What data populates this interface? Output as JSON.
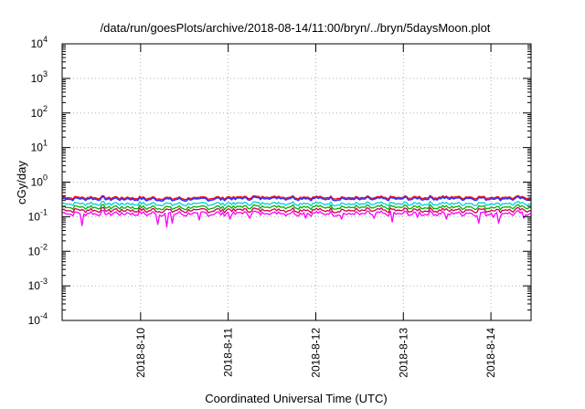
{
  "chart_data": {
    "type": "line",
    "title": "/data/run/goesPlots/archive/2018-08-14/11:00/bryn/../bryn/5daysMoon.plot",
    "xlabel": "Coordinated Universal Time (UTC)",
    "ylabel": "cGy/day",
    "yscale": "log",
    "ylim": [
      0.0001,
      10000
    ],
    "xlim": [
      "2018-08-09 02:30",
      "2018-08-14 11:00"
    ],
    "x_ticks": [
      "2018-8-10",
      "2018-8-11",
      "2018-8-12",
      "2018-8-13",
      "2018-8-14"
    ],
    "y_ticks": [
      {
        "base": "10",
        "exp": "4"
      },
      {
        "base": "10",
        "exp": "3"
      },
      {
        "base": "10",
        "exp": "2"
      },
      {
        "base": "10",
        "exp": "1"
      },
      {
        "base": "10",
        "exp": "0"
      },
      {
        "base": "10",
        "exp": "-1"
      },
      {
        "base": "10",
        "exp": "-2"
      },
      {
        "base": "10",
        "exp": "-3"
      },
      {
        "base": "10",
        "exp": "-4"
      }
    ],
    "grid": true,
    "legend": "none",
    "sampled_days": [
      "2018-08-09",
      "2018-08-10",
      "2018-08-11",
      "2018-08-12",
      "2018-08-13",
      "2018-08-14"
    ],
    "series": [
      {
        "color": "#ff0000",
        "values": [
          0.36,
          0.34,
          0.38,
          0.35,
          0.37,
          0.36
        ]
      },
      {
        "color": "#3333ff",
        "values": [
          0.33,
          0.31,
          0.35,
          0.32,
          0.34,
          0.33
        ]
      },
      {
        "color": "#00d0d0",
        "values": [
          0.24,
          0.23,
          0.25,
          0.23,
          0.24,
          0.24
        ]
      },
      {
        "color": "#00b000",
        "values": [
          0.19,
          0.18,
          0.2,
          0.185,
          0.19,
          0.19
        ]
      },
      {
        "color": "#cc0044",
        "values": [
          0.155,
          0.15,
          0.16,
          0.15,
          0.155,
          0.155
        ]
      },
      {
        "color": "#ff00ff",
        "values": [
          0.125,
          0.12,
          0.13,
          0.12,
          0.125,
          0.125
        ],
        "dips": [
          {
            "t": "2018-08-09 08:00",
            "y": 0.055
          },
          {
            "t": "2018-08-10 04:30",
            "y": 0.06
          },
          {
            "t": "2018-08-10 07:00",
            "y": 0.05
          },
          {
            "t": "2018-08-10 08:30",
            "y": 0.065
          },
          {
            "t": "2018-08-10 16:00",
            "y": 0.08
          },
          {
            "t": "2018-08-11 00:30",
            "y": 0.085
          },
          {
            "t": "2018-08-11 06:00",
            "y": 0.09
          },
          {
            "t": "2018-08-11 21:00",
            "y": 0.09
          },
          {
            "t": "2018-08-12 07:00",
            "y": 0.085
          },
          {
            "t": "2018-08-12 16:00",
            "y": 0.09
          },
          {
            "t": "2018-08-12 21:00",
            "y": 0.07
          },
          {
            "t": "2018-08-13 04:00",
            "y": 0.095
          },
          {
            "t": "2018-08-13 12:00",
            "y": 0.085
          },
          {
            "t": "2018-08-13 20:30",
            "y": 0.065
          },
          {
            "t": "2018-08-14 00:30",
            "y": 0.095
          },
          {
            "t": "2018-08-14 02:00",
            "y": 0.065
          },
          {
            "t": "2018-08-14 09:00",
            "y": 0.09
          }
        ]
      }
    ]
  }
}
